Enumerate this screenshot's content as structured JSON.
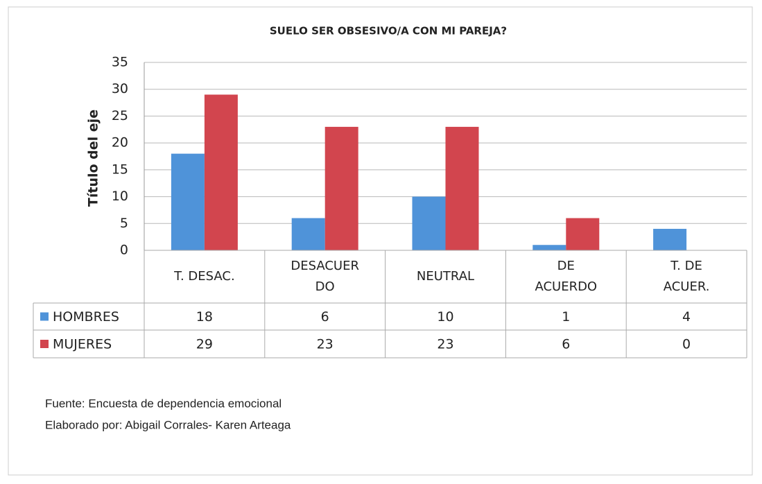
{
  "chart_data": {
    "type": "bar",
    "title": "SUELO SER OBSESIVO/A CON MI PAREJA?",
    "ylabel": "Título del eje",
    "categories": [
      "T. DESAC.",
      "DESACUERDO",
      "NEUTRAL",
      "DE ACUERDO",
      "T. DE ACUER."
    ],
    "series": [
      {
        "name": "HOMBRES",
        "color": "#4f93d9",
        "values": [
          18,
          6,
          10,
          1,
          4
        ]
      },
      {
        "name": "MUJERES",
        "color": "#d2454e",
        "values": [
          29,
          23,
          23,
          6,
          0
        ]
      }
    ],
    "ylim": [
      0,
      35
    ],
    "yticks": [
      0,
      5,
      10,
      15,
      20,
      25,
      30,
      35
    ],
    "grid": true,
    "notes": [
      "Fuente: Encuesta de dependencia emocional",
      "Elaborado por: Abigail Corrales- Karen Arteaga"
    ]
  }
}
